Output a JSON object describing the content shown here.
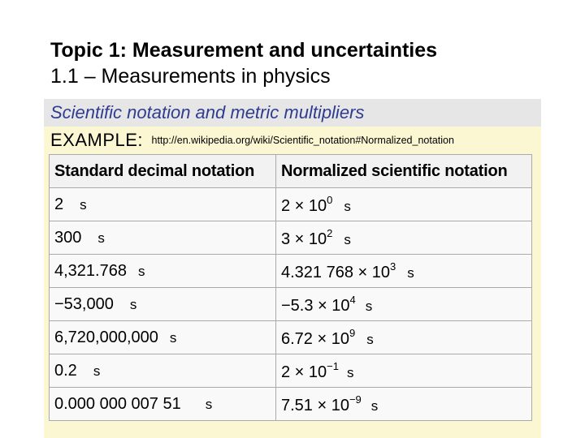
{
  "title": {
    "line1": "Topic 1: Measurement and uncertainties",
    "line2": "1.1 – Measurements in physics"
  },
  "subtitle": "Scientific notation and metric multipliers",
  "example": {
    "label": "EXAMPLE:",
    "url": "http://en.wikipedia.org/wiki/Scientific_notation#Normalized_notation"
  },
  "table": {
    "headers": [
      "Standard decimal notation",
      "Normalized scientific notation"
    ],
    "rows": [
      {
        "decimal": "2",
        "mantissa": "2 × 10",
        "exponent": "0",
        "unit": "s"
      },
      {
        "decimal": "300",
        "mantissa": "3 × 10",
        "exponent": "2",
        "unit": "s"
      },
      {
        "decimal": "4,321.768",
        "mantissa": "4.321 768 × 10",
        "exponent": "3",
        "unit": "s"
      },
      {
        "decimal": "−53,000",
        "mantissa": "−5.3 × 10",
        "exponent": "4",
        "unit": "s"
      },
      {
        "decimal": "6,720,000,000",
        "mantissa": "6.72 × 10",
        "exponent": "9",
        "unit": "s"
      },
      {
        "decimal": "0.2",
        "mantissa": "2 × 10",
        "exponent": "−1",
        "unit": "s"
      },
      {
        "decimal": "0.000 000 007 51",
        "mantissa": "7.51 × 10",
        "exponent": "−9",
        "unit": "s"
      }
    ]
  }
}
